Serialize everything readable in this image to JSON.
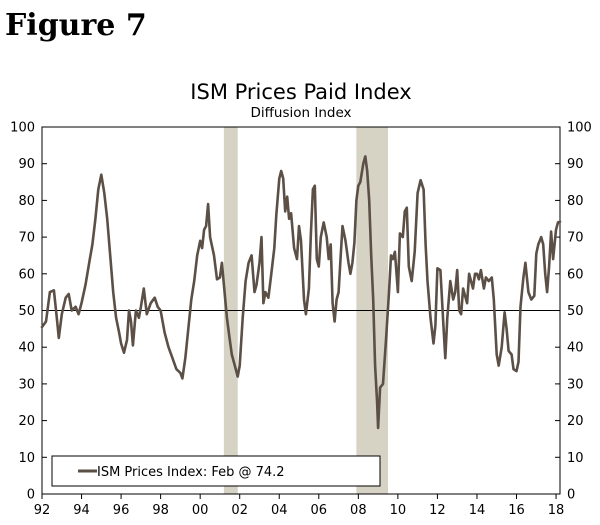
{
  "figure_label": "Figure 7",
  "chart_data": {
    "type": "line",
    "title": "ISM Prices Paid Index",
    "subtitle": "Diffusion Index",
    "xlabel": "",
    "ylabel": "",
    "x_range": [
      1992.0,
      2018.2
    ],
    "ylim": [
      0,
      100
    ],
    "y_ticks": [
      0,
      10,
      20,
      30,
      40,
      50,
      60,
      70,
      80,
      90,
      100
    ],
    "x_ticks": [
      {
        "value": 1992,
        "label": "92"
      },
      {
        "value": 1994,
        "label": "94"
      },
      {
        "value": 1996,
        "label": "96"
      },
      {
        "value": 1998,
        "label": "98"
      },
      {
        "value": 2000,
        "label": "00"
      },
      {
        "value": 2002,
        "label": "02"
      },
      {
        "value": 2004,
        "label": "04"
      },
      {
        "value": 2006,
        "label": "06"
      },
      {
        "value": 2008,
        "label": "08"
      },
      {
        "value": 2010,
        "label": "10"
      },
      {
        "value": 2012,
        "label": "12"
      },
      {
        "value": 2014,
        "label": "14"
      },
      {
        "value": 2016,
        "label": "16"
      },
      {
        "value": 2018,
        "label": "18"
      }
    ],
    "reference_line": 50,
    "recessions": [
      [
        2001.2,
        2001.9
      ],
      [
        2007.9,
        2009.5
      ]
    ],
    "legend": "ISM Prices Index: Feb @ 74.2",
    "series": [
      {
        "name": "ISM Prices Index",
        "color": "#5b4f46",
        "points": [
          [
            1992.0,
            45.5
          ],
          [
            1992.2,
            47
          ],
          [
            1992.4,
            55
          ],
          [
            1992.6,
            55.5
          ],
          [
            1992.75,
            48
          ],
          [
            1992.85,
            42.5
          ],
          [
            1993.0,
            49
          ],
          [
            1993.2,
            53.5
          ],
          [
            1993.35,
            54.5
          ],
          [
            1993.5,
            50
          ],
          [
            1993.7,
            51
          ],
          [
            1993.85,
            49
          ],
          [
            1994.0,
            52
          ],
          [
            1994.2,
            57
          ],
          [
            1994.4,
            63.5
          ],
          [
            1994.55,
            68
          ],
          [
            1994.7,
            75
          ],
          [
            1994.85,
            83
          ],
          [
            1995.0,
            87
          ],
          [
            1995.15,
            82
          ],
          [
            1995.3,
            75
          ],
          [
            1995.45,
            65
          ],
          [
            1995.6,
            55
          ],
          [
            1995.75,
            48
          ],
          [
            1995.9,
            44
          ],
          [
            1996.0,
            41
          ],
          [
            1996.15,
            38.5
          ],
          [
            1996.3,
            42
          ],
          [
            1996.4,
            50
          ],
          [
            1996.5,
            47
          ],
          [
            1996.6,
            40.5
          ],
          [
            1996.75,
            50
          ],
          [
            1996.9,
            48
          ],
          [
            1997.0,
            51
          ],
          [
            1997.15,
            56
          ],
          [
            1997.3,
            49
          ],
          [
            1997.5,
            52
          ],
          [
            1997.7,
            53.5
          ],
          [
            1997.85,
            51
          ],
          [
            1998.0,
            50
          ],
          [
            1998.2,
            44
          ],
          [
            1998.4,
            40
          ],
          [
            1998.6,
            37
          ],
          [
            1998.8,
            34
          ],
          [
            1999.0,
            33
          ],
          [
            1999.1,
            31.5
          ],
          [
            1999.25,
            37
          ],
          [
            1999.4,
            45
          ],
          [
            1999.55,
            53
          ],
          [
            1999.7,
            58
          ],
          [
            1999.85,
            65
          ],
          [
            2000.0,
            69
          ],
          [
            2000.1,
            67
          ],
          [
            2000.2,
            72
          ],
          [
            2000.3,
            73
          ],
          [
            2000.4,
            79
          ],
          [
            2000.5,
            70
          ],
          [
            2000.7,
            65
          ],
          [
            2000.85,
            58.5
          ],
          [
            2001.0,
            59
          ],
          [
            2001.1,
            63
          ],
          [
            2001.2,
            57
          ],
          [
            2001.35,
            48
          ],
          [
            2001.5,
            42
          ],
          [
            2001.6,
            38
          ],
          [
            2001.75,
            35
          ],
          [
            2001.9,
            32
          ],
          [
            2002.0,
            35
          ],
          [
            2002.15,
            48
          ],
          [
            2002.3,
            58
          ],
          [
            2002.45,
            63
          ],
          [
            2002.6,
            65
          ],
          [
            2002.75,
            55
          ],
          [
            2002.85,
            57
          ],
          [
            2003.0,
            63
          ],
          [
            2003.1,
            70
          ],
          [
            2003.2,
            52
          ],
          [
            2003.3,
            55
          ],
          [
            2003.45,
            53.5
          ],
          [
            2003.6,
            60
          ],
          [
            2003.75,
            67
          ],
          [
            2003.85,
            76
          ],
          [
            2004.0,
            86
          ],
          [
            2004.1,
            88
          ],
          [
            2004.2,
            86
          ],
          [
            2004.3,
            77
          ],
          [
            2004.4,
            81
          ],
          [
            2004.5,
            75
          ],
          [
            2004.6,
            76.5
          ],
          [
            2004.75,
            67
          ],
          [
            2004.9,
            64
          ],
          [
            2005.0,
            73
          ],
          [
            2005.1,
            69
          ],
          [
            2005.25,
            53
          ],
          [
            2005.35,
            49
          ],
          [
            2005.5,
            56
          ],
          [
            2005.6,
            71
          ],
          [
            2005.7,
            83
          ],
          [
            2005.8,
            84
          ],
          [
            2005.9,
            64
          ],
          [
            2006.0,
            62
          ],
          [
            2006.1,
            70
          ],
          [
            2006.25,
            74
          ],
          [
            2006.4,
            70
          ],
          [
            2006.5,
            64
          ],
          [
            2006.6,
            68
          ],
          [
            2006.7,
            52
          ],
          [
            2006.8,
            47
          ],
          [
            2006.9,
            53
          ],
          [
            2007.0,
            55
          ],
          [
            2007.1,
            64
          ],
          [
            2007.2,
            73
          ],
          [
            2007.35,
            69
          ],
          [
            2007.5,
            63
          ],
          [
            2007.6,
            60
          ],
          [
            2007.7,
            63
          ],
          [
            2007.8,
            68.5
          ],
          [
            2007.9,
            80
          ],
          [
            2008.0,
            84
          ],
          [
            2008.1,
            85
          ],
          [
            2008.25,
            90
          ],
          [
            2008.35,
            92
          ],
          [
            2008.45,
            88
          ],
          [
            2008.55,
            80
          ],
          [
            2008.65,
            65
          ],
          [
            2008.75,
            53
          ],
          [
            2008.85,
            35
          ],
          [
            2008.95,
            25
          ],
          [
            2009.0,
            18
          ],
          [
            2009.1,
            29
          ],
          [
            2009.25,
            30
          ],
          [
            2009.4,
            42
          ],
          [
            2009.55,
            55
          ],
          [
            2009.65,
            65
          ],
          [
            2009.75,
            64
          ],
          [
            2009.85,
            66
          ],
          [
            2010.0,
            55
          ],
          [
            2010.1,
            71
          ],
          [
            2010.25,
            70
          ],
          [
            2010.35,
            77
          ],
          [
            2010.45,
            78
          ],
          [
            2010.55,
            62
          ],
          [
            2010.7,
            58
          ],
          [
            2010.85,
            66
          ],
          [
            2011.0,
            82
          ],
          [
            2011.15,
            85.5
          ],
          [
            2011.3,
            83
          ],
          [
            2011.4,
            68
          ],
          [
            2011.5,
            58
          ],
          [
            2011.65,
            48
          ],
          [
            2011.8,
            41
          ],
          [
            2011.9,
            46
          ],
          [
            2012.0,
            61.5
          ],
          [
            2012.15,
            61
          ],
          [
            2012.3,
            46
          ],
          [
            2012.4,
            37
          ],
          [
            2012.5,
            48
          ],
          [
            2012.65,
            58
          ],
          [
            2012.8,
            53
          ],
          [
            2012.9,
            55
          ],
          [
            2013.0,
            61
          ],
          [
            2013.1,
            50
          ],
          [
            2013.2,
            49
          ],
          [
            2013.3,
            56
          ],
          [
            2013.5,
            52
          ],
          [
            2013.6,
            60
          ],
          [
            2013.8,
            56
          ],
          [
            2013.9,
            60
          ],
          [
            2014.0,
            60
          ],
          [
            2014.1,
            58.5
          ],
          [
            2014.2,
            61
          ],
          [
            2014.35,
            56
          ],
          [
            2014.45,
            59
          ],
          [
            2014.6,
            58
          ],
          [
            2014.75,
            59
          ],
          [
            2014.85,
            53
          ],
          [
            2015.0,
            38
          ],
          [
            2015.1,
            35
          ],
          [
            2015.25,
            40
          ],
          [
            2015.4,
            49.5
          ],
          [
            2015.5,
            45
          ],
          [
            2015.6,
            39
          ],
          [
            2015.75,
            38
          ],
          [
            2015.85,
            34
          ],
          [
            2016.0,
            33.5
          ],
          [
            2016.1,
            36
          ],
          [
            2016.2,
            51
          ],
          [
            2016.35,
            59
          ],
          [
            2016.45,
            63
          ],
          [
            2016.6,
            55
          ],
          [
            2016.75,
            53
          ],
          [
            2016.9,
            54
          ],
          [
            2017.0,
            65.5
          ],
          [
            2017.1,
            68
          ],
          [
            2017.25,
            70
          ],
          [
            2017.35,
            68
          ],
          [
            2017.45,
            60
          ],
          [
            2017.55,
            55
          ],
          [
            2017.65,
            62
          ],
          [
            2017.75,
            71.5
          ],
          [
            2017.85,
            64
          ],
          [
            2018.0,
            72
          ],
          [
            2018.1,
            74
          ],
          [
            2018.2,
            74.2
          ]
        ]
      }
    ]
  }
}
